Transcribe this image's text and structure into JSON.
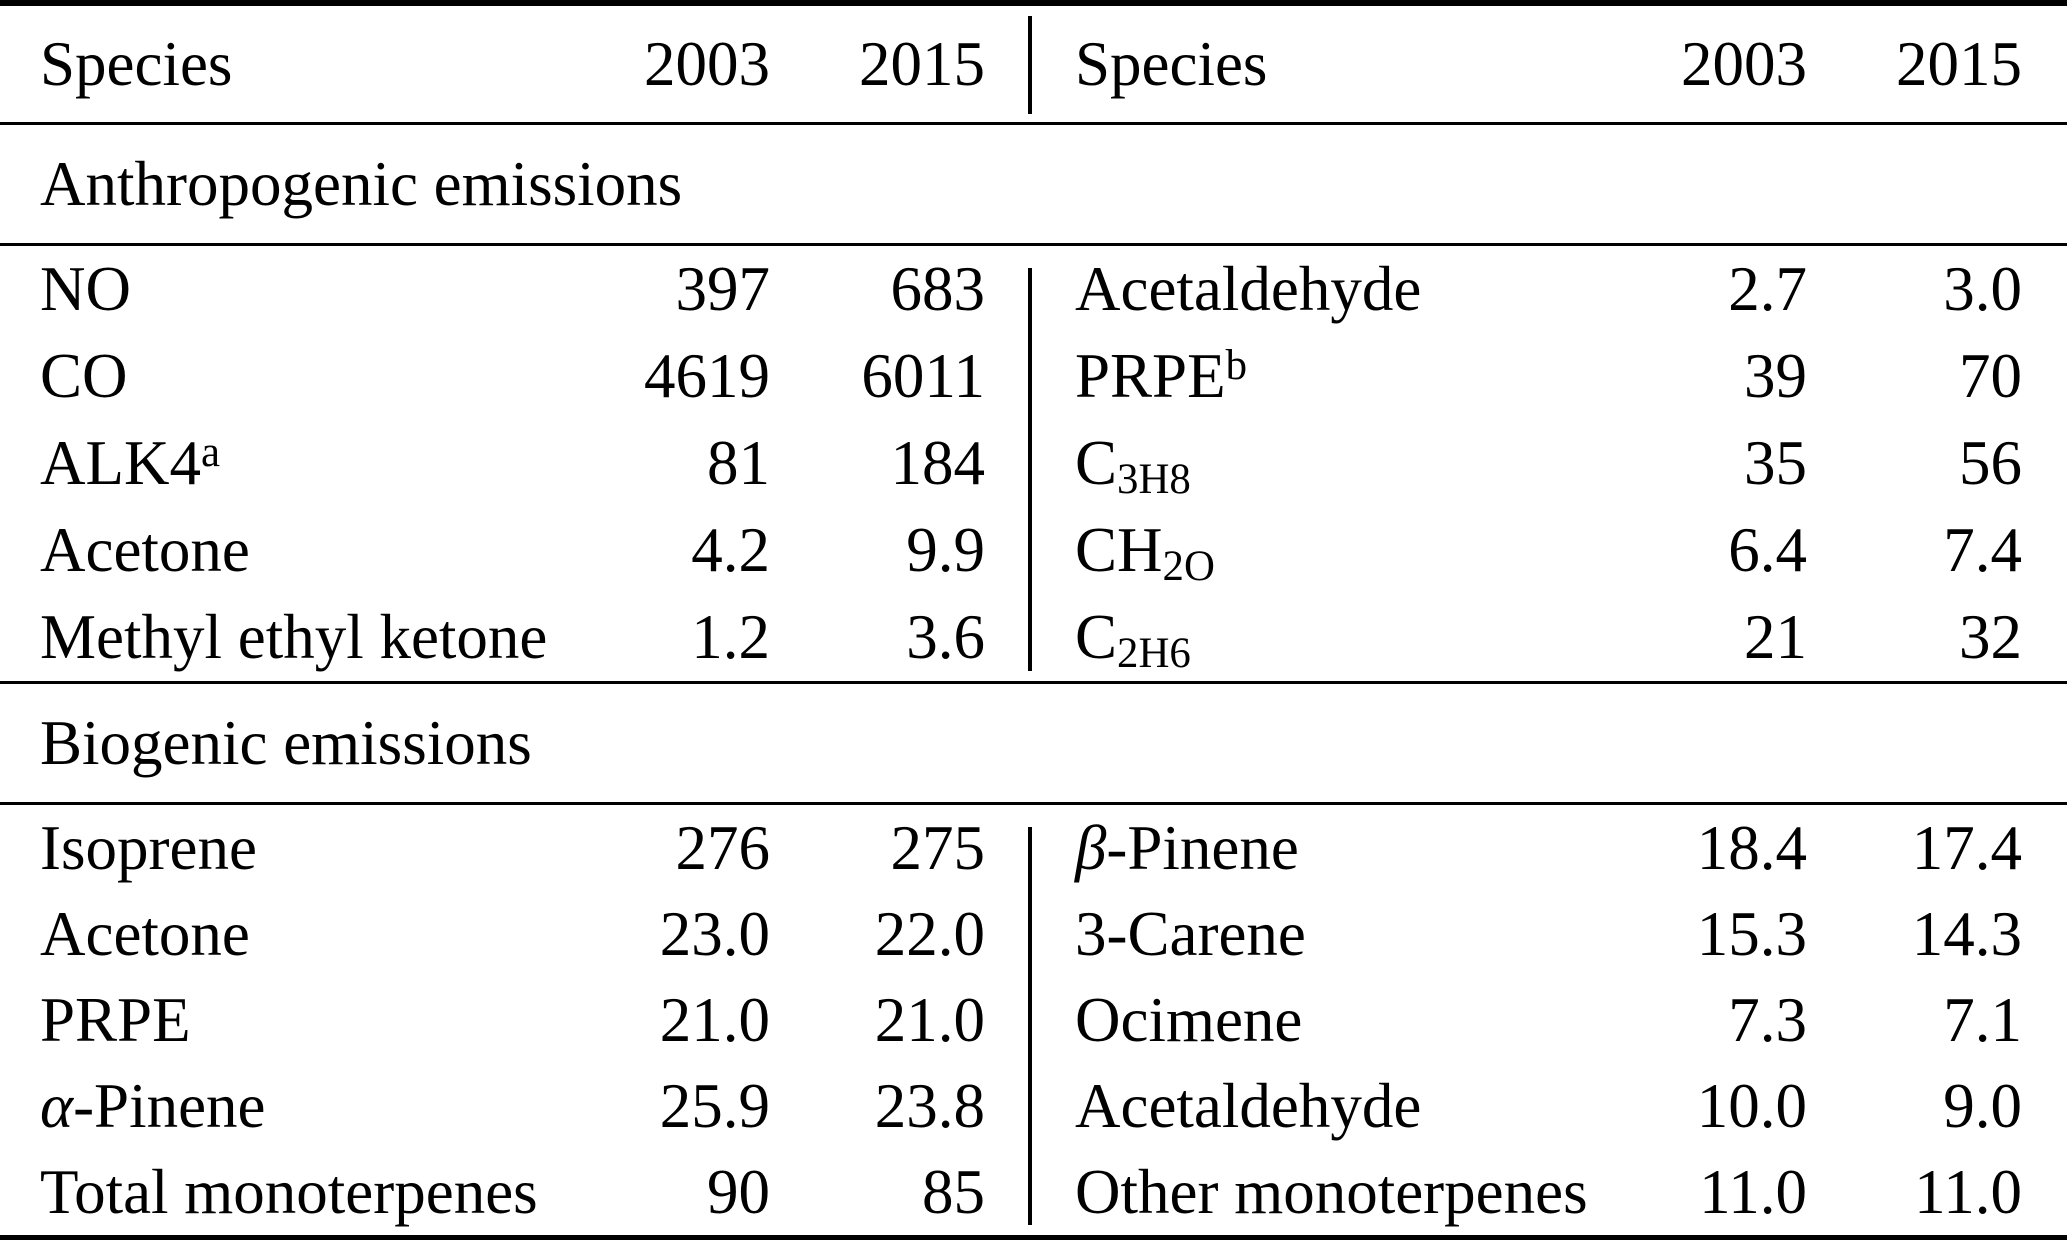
{
  "table": {
    "header": {
      "species": "Species",
      "y2003": "2003",
      "y2015": "2015"
    },
    "sections": [
      {
        "title": "Anthropogenic emissions",
        "rows": [
          {
            "left": {
              "species": "NO",
              "v2003": "397",
              "v2015": "683"
            },
            "right": {
              "species": "Acetaldehyde",
              "v2003": "2.7",
              "v2015": "3.0"
            }
          },
          {
            "left": {
              "species": "CO",
              "v2003": "4619",
              "v2015": "6011"
            },
            "right": {
              "species": "PRPE^b",
              "v2003": "39",
              "v2015": "70"
            }
          },
          {
            "left": {
              "species": "ALK4^a",
              "v2003": "81",
              "v2015": "184"
            },
            "right": {
              "species": "C_3H_8",
              "v2003": "35",
              "v2015": "56"
            }
          },
          {
            "left": {
              "species": "Acetone",
              "v2003": "4.2",
              "v2015": "9.9"
            },
            "right": {
              "species": "CH_2O",
              "v2003": "6.4",
              "v2015": "7.4"
            }
          },
          {
            "left": {
              "species": "Methyl ethyl ketone",
              "v2003": "1.2",
              "v2015": "3.6"
            },
            "right": {
              "species": "C_2H_6",
              "v2003": "21",
              "v2015": "32"
            }
          }
        ]
      },
      {
        "title": "Biogenic emissions",
        "rows": [
          {
            "left": {
              "species": "Isoprene",
              "v2003": "276",
              "v2015": "275"
            },
            "right": {
              "species": "β-Pinene",
              "v2003": "18.4",
              "v2015": "17.4"
            }
          },
          {
            "left": {
              "species": "Acetone",
              "v2003": "23.0",
              "v2015": "22.0"
            },
            "right": {
              "species": "3-Carene",
              "v2003": "15.3",
              "v2015": "14.3"
            }
          },
          {
            "left": {
              "species": "PRPE",
              "v2003": "21.0",
              "v2015": "21.0"
            },
            "right": {
              "species": "Ocimene",
              "v2003": "7.3",
              "v2015": "7.1"
            }
          },
          {
            "left": {
              "species": "α-Pinene",
              "v2003": "25.9",
              "v2015": "23.8"
            },
            "right": {
              "species": "Acetaldehyde",
              "v2003": "10.0",
              "v2015": "9.0"
            }
          },
          {
            "left": {
              "species": "Total monoterpenes",
              "v2003": "90",
              "v2015": "85"
            },
            "right": {
              "species": "Other monoterpenes",
              "v2003": "11.0",
              "v2015": "11.0"
            }
          }
        ]
      }
    ],
    "colors": {
      "text": "#000000",
      "background": "#ffffff",
      "rule": "#000000"
    }
  }
}
